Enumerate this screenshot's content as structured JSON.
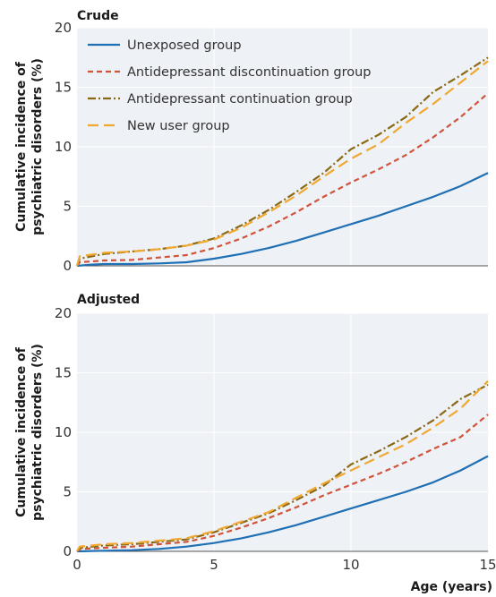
{
  "chart_data": [
    {
      "type": "line",
      "title": "Crude",
      "ylabel_line1": "Cumulative incidence of",
      "ylabel_line2": "psychiatric disorders (%)",
      "xlabel": "",
      "xlim": [
        0,
        15
      ],
      "ylim": [
        0,
        20
      ],
      "xticks": [
        "0",
        "5",
        "10",
        "15"
      ],
      "yticks": [
        "0",
        "5",
        "10",
        "15",
        "20"
      ],
      "grid": true,
      "legend": "top-left",
      "series": [
        {
          "name": "Unexposed group",
          "color": "#1f6fb5",
          "dash": "solid",
          "x": [
            0,
            0.5,
            1,
            2,
            3,
            4,
            5,
            6,
            7,
            8,
            9,
            10,
            11,
            12,
            13,
            14,
            15
          ],
          "y": [
            0.0,
            0.1,
            0.15,
            0.15,
            0.2,
            0.3,
            0.6,
            1.0,
            1.5,
            2.1,
            2.8,
            3.5,
            4.2,
            5.0,
            5.8,
            6.7,
            7.8
          ]
        },
        {
          "name": "Antidepressant discontinuation group",
          "color": "#d0533a",
          "dash": "dashed",
          "x": [
            0,
            0.1,
            1,
            2,
            3,
            4,
            5,
            6,
            7,
            8,
            9,
            10,
            11,
            12,
            13,
            14,
            15
          ],
          "y": [
            0.0,
            0.3,
            0.45,
            0.5,
            0.7,
            0.9,
            1.5,
            2.3,
            3.3,
            4.5,
            5.8,
            7.0,
            8.1,
            9.3,
            10.8,
            12.5,
            14.5
          ]
        },
        {
          "name": "Antidepressant continuation group",
          "color": "#8b6914",
          "dash": "dashdot",
          "x": [
            0,
            0.1,
            1,
            2,
            3,
            4,
            5,
            6,
            7,
            8,
            9,
            10,
            11,
            12,
            13,
            14,
            15
          ],
          "y": [
            0.0,
            0.6,
            1.0,
            1.2,
            1.4,
            1.7,
            2.3,
            3.4,
            4.7,
            6.2,
            7.8,
            9.8,
            11.0,
            12.5,
            14.6,
            16.0,
            17.5
          ]
        },
        {
          "name": "New user group",
          "color": "#f0a830",
          "dash": "longdash",
          "x": [
            0,
            0.1,
            1,
            2,
            3,
            4,
            5,
            6,
            7,
            8,
            9,
            10,
            11,
            12,
            13,
            14,
            15
          ],
          "y": [
            0.0,
            0.8,
            1.1,
            1.2,
            1.4,
            1.7,
            2.2,
            3.2,
            4.5,
            5.9,
            7.5,
            9.0,
            10.2,
            12.0,
            13.6,
            15.4,
            17.2
          ]
        }
      ]
    },
    {
      "type": "line",
      "title": "Adjusted",
      "ylabel_line1": "Cumulative incidence of",
      "ylabel_line2": "psychiatric disorders (%)",
      "xlabel": "Age (years)",
      "xlim": [
        0,
        15
      ],
      "ylim": [
        0,
        20
      ],
      "xticks": [
        "0",
        "5",
        "10",
        "15"
      ],
      "yticks": [
        "0",
        "5",
        "10",
        "15",
        "20"
      ],
      "grid": true,
      "series": [
        {
          "name": "Unexposed group",
          "color": "#1f6fb5",
          "dash": "solid",
          "x": [
            0,
            1,
            2,
            3,
            4,
            5,
            6,
            7,
            8,
            9,
            10,
            11,
            12,
            13,
            14,
            15
          ],
          "y": [
            0.0,
            0.05,
            0.1,
            0.2,
            0.4,
            0.7,
            1.1,
            1.6,
            2.2,
            2.9,
            3.6,
            4.3,
            5.0,
            5.8,
            6.8,
            8.0
          ]
        },
        {
          "name": "Antidepressant discontinuation group",
          "color": "#d0533a",
          "dash": "dashed",
          "x": [
            0,
            0.1,
            1,
            2,
            3,
            4,
            5,
            6,
            7,
            8,
            9,
            10,
            11,
            12,
            13,
            14,
            15
          ],
          "y": [
            0.0,
            0.2,
            0.3,
            0.4,
            0.6,
            0.8,
            1.3,
            2.0,
            2.8,
            3.7,
            4.7,
            5.6,
            6.5,
            7.5,
            8.6,
            9.6,
            11.5
          ]
        },
        {
          "name": "Antidepressant continuation group",
          "color": "#8b6914",
          "dash": "dashdot",
          "x": [
            0,
            0.1,
            1,
            2,
            3,
            4,
            5,
            6,
            7,
            8,
            9,
            10,
            11,
            12,
            13,
            14,
            15
          ],
          "y": [
            0.0,
            0.3,
            0.5,
            0.6,
            0.8,
            1.0,
            1.6,
            2.4,
            3.2,
            4.3,
            5.5,
            7.3,
            8.4,
            9.6,
            11.0,
            12.8,
            14.0
          ]
        },
        {
          "name": "New user group",
          "color": "#f0a830",
          "dash": "longdash",
          "x": [
            0,
            0.1,
            1,
            2,
            3,
            4,
            5,
            6,
            7,
            8,
            9,
            10,
            11,
            12,
            13,
            14,
            15
          ],
          "y": [
            0.0,
            0.4,
            0.6,
            0.7,
            0.9,
            1.1,
            1.7,
            2.5,
            3.3,
            4.5,
            5.7,
            6.8,
            7.9,
            9.0,
            10.4,
            12.0,
            14.3
          ]
        }
      ]
    }
  ]
}
